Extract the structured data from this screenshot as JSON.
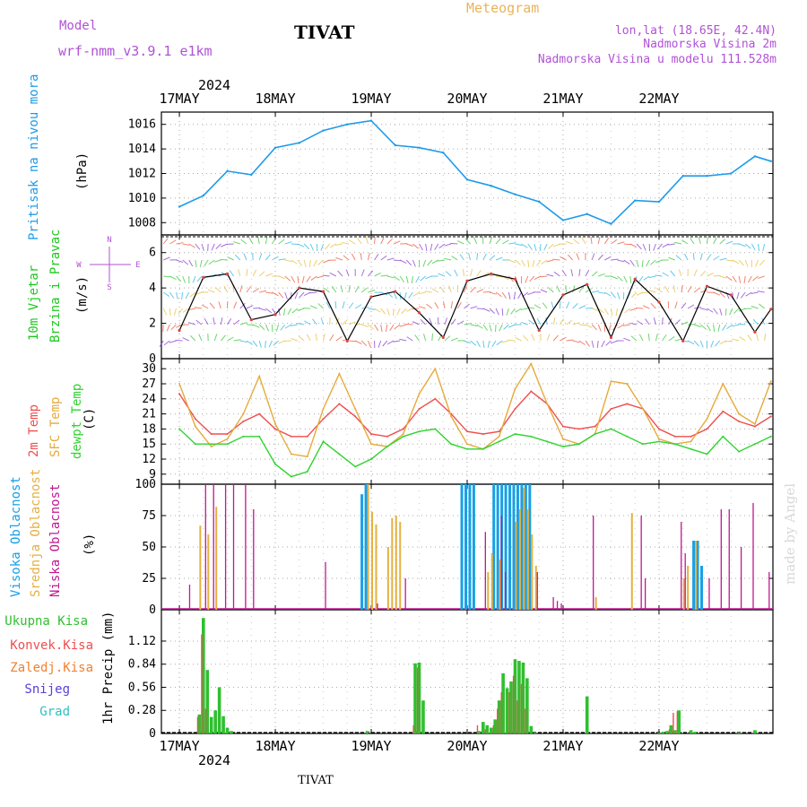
{
  "header": {
    "model_label": "Model",
    "model_name": "wrf-nmm_v3.9.1 e1km",
    "station": "TIVAT",
    "meteogram": "Meteogram",
    "coords": "lon,lat (18.65E, 42.4N)",
    "elevation": "Nadmorska Visina 2m",
    "model_elevation": "Nadmorska Visina u modelu 111.528m",
    "year": "2024",
    "footer_station": "TIVAT",
    "watermark": "made by Angel"
  },
  "colors": {
    "pressure": "#1e9bea",
    "wind_label": "#1ec81e",
    "temp2m": "#ef4e4e",
    "sfc_temp": "#e6aa3c",
    "dewpt": "#2fd32f",
    "cloud_high": "#18a0e6",
    "cloud_mid": "#e6b040",
    "cloud_low": "#c01890",
    "precip_total": "#2fbf2f",
    "precip_conv": "#ef4e4e",
    "precip_strat": "#f08030",
    "snow": "#5a3cdc",
    "hail": "#30c0c0",
    "header_purple": "#b052d6",
    "header_orange": "#e8b45a"
  },
  "chart_data": [
    {
      "type": "line",
      "panel": "pressure",
      "ylabel": [
        "Pritisak na nivou mora",
        "(hPa)"
      ],
      "ylim": [
        1007,
        1017
      ],
      "yticks": [
        1008,
        1010,
        1012,
        1014,
        1016
      ],
      "x_days": [
        "17MAY",
        "18MAY",
        "19MAY",
        "20MAY",
        "21MAY",
        "22MAY"
      ],
      "x_hours": [
        0,
        6,
        12,
        18,
        24,
        30,
        36,
        42,
        48,
        54,
        60,
        66,
        72,
        78,
        84,
        90,
        96,
        102,
        108,
        114,
        120,
        126,
        132,
        138,
        144,
        148
      ],
      "values": [
        1009.3,
        1010.2,
        1012.2,
        1011.9,
        1014.1,
        1014.5,
        1015.5,
        1016.0,
        1016.3,
        1014.3,
        1014.1,
        1013.7,
        1011.5,
        1011.0,
        1010.3,
        1009.7,
        1008.2,
        1008.7,
        1007.9,
        1009.8,
        1009.7,
        1011.8,
        1011.8,
        1012.0,
        1013.4,
        1013.0
      ]
    },
    {
      "type": "line",
      "panel": "wind",
      "ylabel": [
        "10m Vjetar",
        "Brzina i Pravac",
        "(m/s)"
      ],
      "compass": [
        "N",
        "W",
        "E",
        "S"
      ],
      "ylim": [
        0,
        7
      ],
      "yticks": [
        0,
        2,
        4,
        6
      ],
      "x_hours": [
        0,
        6,
        12,
        18,
        24,
        30,
        36,
        42,
        48,
        54,
        60,
        66,
        72,
        78,
        84,
        90,
        96,
        102,
        108,
        114,
        120,
        126,
        132,
        138,
        144,
        148
      ],
      "values": [
        1.6,
        4.6,
        4.8,
        2.2,
        2.5,
        4.0,
        3.8,
        1.0,
        3.5,
        3.8,
        2.6,
        1.2,
        4.4,
        4.8,
        4.5,
        1.6,
        3.6,
        4.2,
        1.2,
        4.5,
        3.2,
        1.0,
        4.1,
        3.6,
        1.5,
        2.8
      ]
    },
    {
      "type": "line",
      "panel": "temperature",
      "ylabel": [
        "2m Temp",
        "SFC Temp",
        "dewpt Temp",
        "(C)"
      ],
      "ylim": [
        7,
        32
      ],
      "yticks": [
        9,
        12,
        15,
        18,
        21,
        24,
        27,
        30
      ],
      "x_hours": [
        0,
        4,
        8,
        12,
        16,
        20,
        24,
        28,
        32,
        36,
        40,
        44,
        48,
        52,
        56,
        60,
        64,
        68,
        72,
        76,
        80,
        84,
        88,
        92,
        96,
        100,
        104,
        108,
        112,
        116,
        120,
        124,
        128,
        132,
        136,
        140,
        144,
        148
      ],
      "series": [
        {
          "name": "2m Temp",
          "values": [
            25.0,
            20.0,
            17.0,
            17.0,
            19.5,
            21.0,
            18.0,
            16.5,
            16.5,
            20.0,
            23.0,
            20.5,
            17.0,
            16.5,
            18.0,
            22.0,
            24.0,
            21.0,
            17.5,
            17.0,
            17.5,
            22.0,
            25.5,
            23.0,
            18.5,
            18.0,
            18.5,
            22.0,
            23.0,
            22.0,
            18.0,
            16.5,
            16.5,
            18.0,
            21.5,
            19.5,
            18.5,
            20.5
          ]
        },
        {
          "name": "SFC Temp",
          "values": [
            27.0,
            18.5,
            14.5,
            16.0,
            21.0,
            28.5,
            19.0,
            13.0,
            12.5,
            22.0,
            29.0,
            22.0,
            15.0,
            14.5,
            17.0,
            25.0,
            30.0,
            20.5,
            15.0,
            14.0,
            16.5,
            26.0,
            31.0,
            23.0,
            16.0,
            15.0,
            17.0,
            27.5,
            27.0,
            22.0,
            16.0,
            15.0,
            15.5,
            20.0,
            27.0,
            21.0,
            19.0,
            27.5
          ]
        },
        {
          "name": "dewpt Temp",
          "values": [
            18.0,
            15.0,
            15.0,
            15.0,
            16.5,
            16.5,
            11.0,
            8.5,
            9.5,
            15.5,
            13.0,
            10.5,
            12.0,
            14.5,
            16.5,
            17.5,
            18.0,
            15.0,
            14.0,
            14.0,
            15.5,
            17.0,
            16.5,
            15.5,
            14.5,
            15.0,
            17.0,
            18.0,
            16.5,
            15.0,
            15.5,
            15.0,
            14.0,
            13.0,
            16.5,
            13.5,
            15.0,
            16.5
          ]
        }
      ]
    },
    {
      "type": "bar",
      "panel": "clouds",
      "ylabel": [
        "Visoka Oblacnost",
        "Srednja Oblacnost",
        "Niska Oblacnost",
        "(%)"
      ],
      "ylim": [
        0,
        100
      ],
      "yticks": [
        0,
        25,
        50,
        75,
        100
      ],
      "series": [
        {
          "name": "Visoka Oblacnost",
          "x_hours": [
            46,
            47,
            71,
            72,
            73,
            74,
            79,
            80,
            81,
            82,
            83,
            84,
            85,
            86,
            87,
            88,
            129,
            130,
            131
          ],
          "values": [
            92,
            100,
            100,
            100,
            100,
            100,
            100,
            100,
            100,
            100,
            100,
            100,
            100,
            100,
            100,
            100,
            55,
            55,
            35
          ]
        },
        {
          "name": "Srednja Oblacnost",
          "x_hours": [
            5,
            7,
            9,
            47,
            48,
            49,
            52,
            53,
            54,
            55,
            77,
            78,
            80,
            84,
            85,
            86,
            87,
            88,
            89,
            104,
            113,
            126,
            127,
            129
          ],
          "values": [
            67,
            60,
            82,
            100,
            78,
            68,
            50,
            73,
            75,
            70,
            30,
            45,
            40,
            70,
            80,
            97,
            80,
            60,
            35,
            10,
            77,
            25,
            35,
            55
          ]
        },
        {
          "name": "Niska Oblacnost",
          "x_hours": [
            2,
            6,
            8,
            11,
            13,
            16,
            18,
            36,
            49,
            56,
            76,
            80,
            81,
            89,
            93,
            94,
            95,
            103,
            115,
            116,
            125,
            126,
            132,
            135,
            137,
            140,
            143,
            147
          ],
          "values": [
            20,
            100,
            100,
            100,
            100,
            100,
            80,
            38,
            5,
            25,
            62,
            75,
            30,
            30,
            10,
            7,
            5,
            75,
            75,
            25,
            70,
            45,
            25,
            80,
            80,
            50,
            85,
            30
          ]
        }
      ]
    },
    {
      "type": "bar",
      "panel": "precipitation",
      "ylabel": [
        "Ukupna Kisa",
        "Konvek.Kisa",
        "Zaledj.Kisa",
        "Snijeg",
        "Grad",
        "1hr Precip (mm)"
      ],
      "ylim": [
        0,
        1.5
      ],
      "yticks": [
        0,
        0.28,
        0.56,
        0.84,
        1.12
      ],
      "series": [
        {
          "name": "Ukupna Kisa",
          "x_hours": [
            5,
            6,
            7,
            8,
            9,
            10,
            11,
            12,
            13,
            47,
            59,
            60,
            61,
            75,
            76,
            77,
            78,
            79,
            80,
            81,
            82,
            83,
            84,
            85,
            86,
            87,
            88,
            89,
            102,
            120,
            121,
            122,
            123,
            124,
            125,
            128,
            129,
            140,
            144
          ],
          "values": [
            0.23,
            1.4,
            0.77,
            0.2,
            0.28,
            0.56,
            0.21,
            0.07,
            0.03,
            0.03,
            0.85,
            0.86,
            0.4,
            0.03,
            0.14,
            0.1,
            0.07,
            0.17,
            0.4,
            0.73,
            0.55,
            0.63,
            0.9,
            0.88,
            0.86,
            0.67,
            0.09,
            0.01,
            0.45,
            0.01,
            0.02,
            0.03,
            0.1,
            0.04,
            0.28,
            0.04,
            0.02,
            0.01,
            0.04
          ]
        },
        {
          "name": "Konvek.Kisa",
          "x_hours": [
            5,
            6,
            7,
            59,
            60,
            75,
            77,
            79,
            80,
            81,
            83,
            84,
            85,
            86,
            87,
            123,
            124,
            125
          ],
          "values": [
            0.2,
            1.2,
            0.3,
            0.1,
            0.8,
            0.1,
            0.05,
            0.1,
            0.3,
            0.5,
            0.5,
            0.7,
            0.4,
            0.6,
            0.3,
            0.05,
            0.25,
            0.27
          ]
        },
        {
          "name": "Zaledj.Kisa",
          "values": []
        },
        {
          "name": "Snijeg",
          "values": []
        },
        {
          "name": "Grad",
          "values": []
        }
      ]
    }
  ]
}
